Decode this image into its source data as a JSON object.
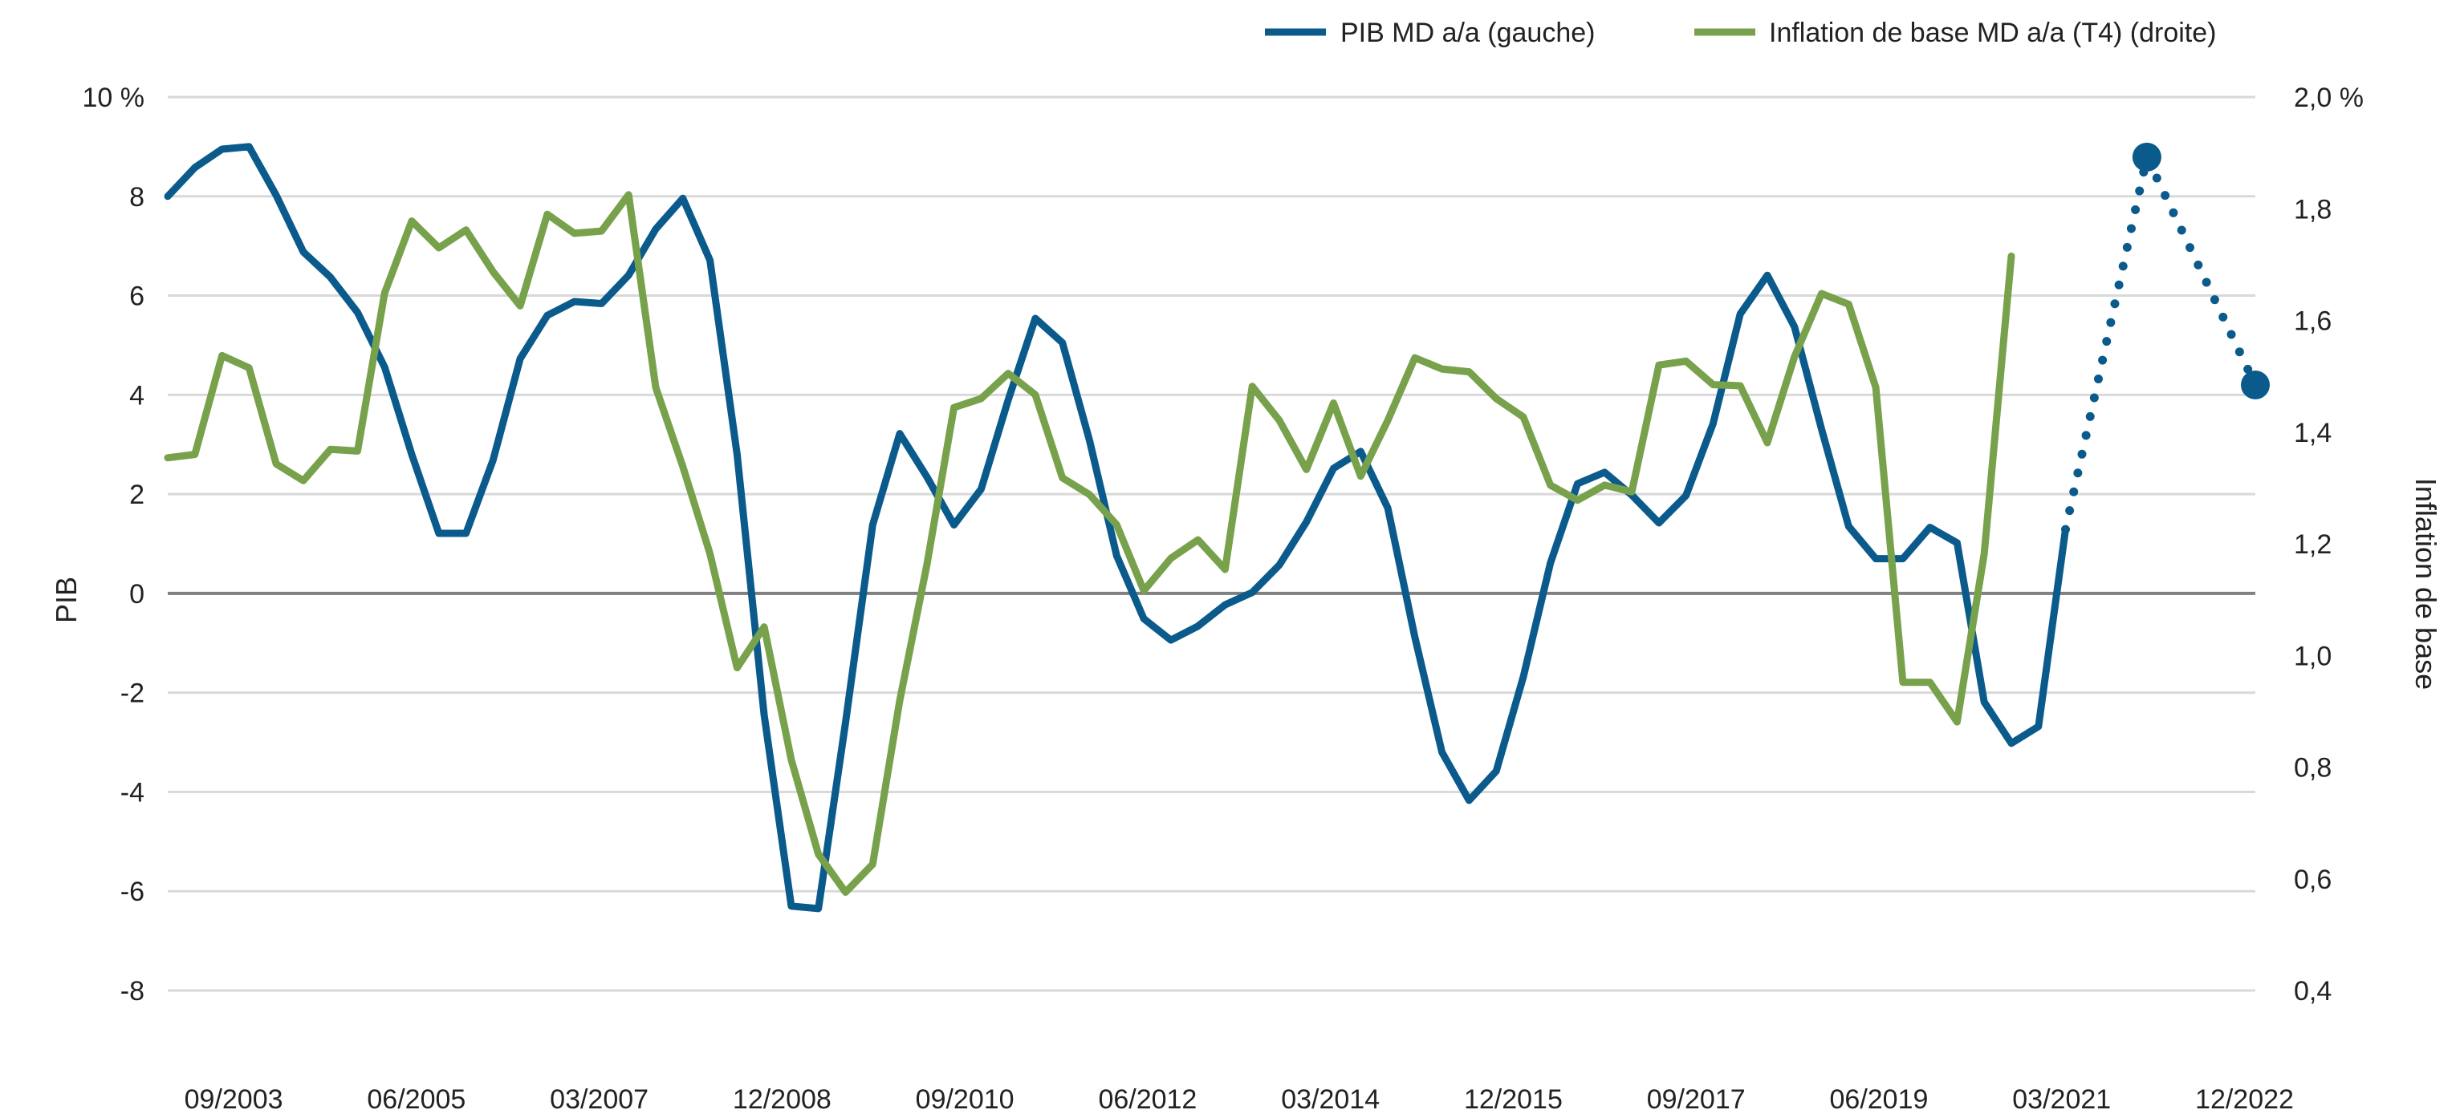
{
  "chart_data": {
    "type": "line",
    "title": "",
    "x_start": "03/2003",
    "x_frequency": "quarterly",
    "x_tick_labels": [
      "09/2003",
      "06/2005",
      "03/2007",
      "12/2008",
      "09/2010",
      "06/2012",
      "03/2014",
      "12/2015",
      "09/2017",
      "06/2019",
      "03/2021",
      "12/2022"
    ],
    "left_axis": {
      "label": "PIB",
      "range": [
        -8,
        10
      ],
      "ticks": [
        -8,
        -6,
        -4,
        -2,
        0,
        2,
        4,
        6,
        8,
        10
      ],
      "tick_labels": [
        "-8",
        "-6",
        "-4",
        "-2",
        "0",
        "2",
        "4",
        "6",
        "8",
        "10 %"
      ]
    },
    "right_axis": {
      "label": "Inflation de base",
      "range": [
        0.4,
        2.0
      ],
      "ticks": [
        0.4,
        0.6,
        0.8,
        1.0,
        1.2,
        1.4,
        1.6,
        1.8,
        2.0
      ],
      "tick_labels": [
        "0,4",
        "0,6",
        "0,8",
        "1,0",
        "1,2",
        "1,4",
        "1,6",
        "1,8",
        "2,0 %"
      ]
    },
    "grid": true,
    "legend_position": "top-right",
    "series": [
      {
        "name": "PIB MD a/a (gauche)",
        "axis": "left",
        "color": "#0b5a8c",
        "values": [
          8.0,
          8.58,
          8.95,
          9.0,
          8.02,
          6.88,
          6.37,
          5.66,
          4.56,
          2.8,
          1.21,
          1.21,
          2.69,
          4.73,
          5.6,
          5.88,
          5.84,
          6.41,
          7.34,
          7.96,
          6.71,
          2.8,
          -2.45,
          -6.3,
          -6.35,
          -2.6,
          1.38,
          3.22,
          2.35,
          1.38,
          2.1,
          3.9,
          5.54,
          5.05,
          3.08,
          0.76,
          -0.51,
          -0.94,
          -0.66,
          -0.23,
          0.02,
          0.57,
          1.44,
          2.52,
          2.86,
          1.72,
          -0.88,
          -3.2,
          -4.17,
          -3.58,
          -1.68,
          0.61,
          2.21,
          2.44,
          1.98,
          1.42,
          1.97,
          3.42,
          5.63,
          6.41,
          5.37,
          3.31,
          1.35,
          0.7,
          0.7,
          1.33,
          1.02,
          -2.19,
          -3.02,
          -2.68,
          1.29
        ]
      },
      {
        "name": "Inflation de base MD a/a (T4) (droite)",
        "axis": "right",
        "color": "#78a14b",
        "values": [
          1.354,
          1.36,
          1.537,
          1.515,
          1.343,
          1.313,
          1.369,
          1.366,
          1.649,
          1.778,
          1.73,
          1.762,
          1.687,
          1.626,
          1.79,
          1.756,
          1.76,
          1.825,
          1.48,
          1.338,
          1.182,
          0.978,
          1.051,
          0.813,
          0.644,
          0.576,
          0.626,
          0.919,
          1.162,
          1.444,
          1.46,
          1.505,
          1.467,
          1.318,
          1.288,
          1.234,
          1.116,
          1.174,
          1.207,
          1.154,
          1.482,
          1.421,
          1.333,
          1.452,
          1.321,
          1.421,
          1.533,
          1.513,
          1.508,
          1.46,
          1.427,
          1.305,
          1.278,
          1.305,
          1.293,
          1.52,
          1.527,
          1.485,
          1.483,
          1.381,
          1.535,
          1.648,
          1.629,
          1.48,
          0.952,
          0.952,
          0.881,
          1.182,
          1.715
        ]
      }
    ],
    "projection": {
      "series": "PIB MD a/a (gauche)",
      "style": "dotted",
      "color": "#0b5a8c",
      "points": [
        {
          "x": 70,
          "y": 1.29
        },
        {
          "x": 73,
          "y": 8.79
        },
        {
          "x": 77,
          "y": 4.2
        }
      ],
      "markers": [
        {
          "x": 73,
          "y": 8.79
        },
        {
          "x": 77,
          "y": 4.2
        }
      ]
    }
  }
}
